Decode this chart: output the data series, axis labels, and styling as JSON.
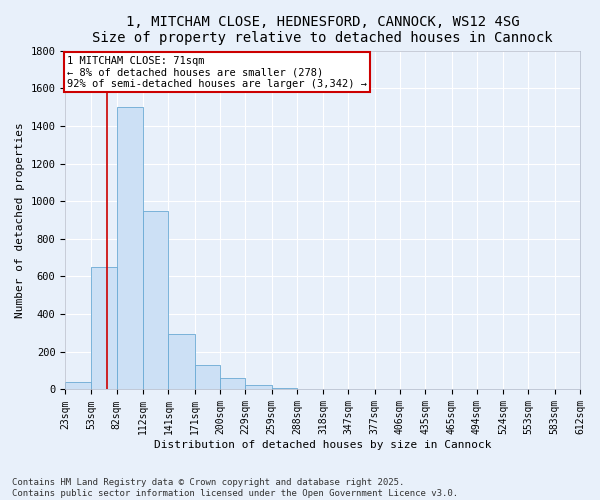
{
  "title_line1": "1, MITCHAM CLOSE, HEDNESFORD, CANNOCK, WS12 4SG",
  "title_line2": "Size of property relative to detached houses in Cannock",
  "xlabel": "Distribution of detached houses by size in Cannock",
  "ylabel": "Number of detached properties",
  "bar_values": [
    40,
    650,
    1500,
    950,
    295,
    130,
    60,
    25,
    10,
    5,
    0,
    0,
    0,
    0,
    0,
    0,
    0,
    0,
    0,
    0
  ],
  "bin_edges": [
    23,
    53,
    82,
    112,
    141,
    171,
    200,
    229,
    259,
    288,
    318,
    347,
    377,
    406,
    435,
    465,
    494,
    524,
    553,
    583,
    612
  ],
  "tick_labels": [
    "23sqm",
    "53sqm",
    "82sqm",
    "112sqm",
    "141sqm",
    "171sqm",
    "200sqm",
    "229sqm",
    "259sqm",
    "288sqm",
    "318sqm",
    "347sqm",
    "377sqm",
    "406sqm",
    "435sqm",
    "465sqm",
    "494sqm",
    "524sqm",
    "553sqm",
    "583sqm",
    "612sqm"
  ],
  "bar_color": "#cce0f5",
  "bar_edge_color": "#6aaad4",
  "background_color": "#e8f0fa",
  "fig_background_color": "#e8f0fa",
  "grid_color": "#ffffff",
  "property_line_x": 71,
  "property_line_color": "#cc0000",
  "annotation_text": "1 MITCHAM CLOSE: 71sqm\n← 8% of detached houses are smaller (278)\n92% of semi-detached houses are larger (3,342) →",
  "annotation_box_color": "#ffffff",
  "annotation_box_edge": "#cc0000",
  "ylim": [
    0,
    1800
  ],
  "yticks": [
    0,
    200,
    400,
    600,
    800,
    1000,
    1200,
    1400,
    1600,
    1800
  ],
  "footer_line1": "Contains HM Land Registry data © Crown copyright and database right 2025.",
  "footer_line2": "Contains public sector information licensed under the Open Government Licence v3.0.",
  "title_fontsize": 10,
  "axis_label_fontsize": 8,
  "tick_fontsize": 7,
  "annotation_fontsize": 7.5,
  "footer_fontsize": 6.5
}
